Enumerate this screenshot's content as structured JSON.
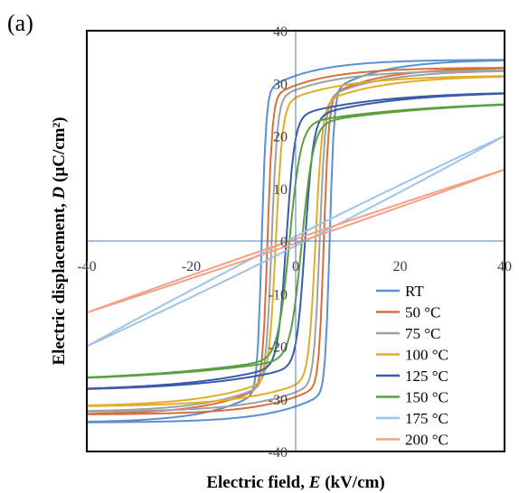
{
  "panel_label": "(a)",
  "chart_data": {
    "type": "line",
    "title": "",
    "xlabel": {
      "pre": "Electric field, ",
      "var": "E",
      "post": " (kV/cm)"
    },
    "ylabel": {
      "pre": "Electric displacement, ",
      "var": "D",
      "post": " (μC/cm²)"
    },
    "xlim": [
      -40,
      40
    ],
    "ylim": [
      -40,
      40
    ],
    "x_ticks": [
      -40,
      -20,
      0,
      20,
      40
    ],
    "y_ticks": [
      -40,
      -30,
      -20,
      -10,
      0,
      10,
      20,
      30,
      40
    ],
    "grid": false,
    "legend_position": "bottom-right",
    "series": [
      {
        "name": "RT",
        "color": "#5b8fcf",
        "Ps": 34.5,
        "Ec": 6.5,
        "w": 0.85,
        "sat": 2.3,
        "lin": 0,
        "hys": 0
      },
      {
        "name": "50 °C",
        "color": "#d4703b",
        "Ps": 33.0,
        "Ec": 5.4,
        "w": 0.95,
        "sat": 2.4,
        "lin": 0,
        "hys": 0
      },
      {
        "name": "75 °C",
        "color": "#a0a0a0",
        "Ps": 32.5,
        "Ec": 4.6,
        "w": 1.1,
        "sat": 2.6,
        "lin": 0,
        "hys": 0
      },
      {
        "name": "100 °C",
        "color": "#e0ac2a",
        "Ps": 31.5,
        "Ec": 3.8,
        "w": 1.3,
        "sat": 2.9,
        "lin": 0,
        "hys": 0
      },
      {
        "name": "125 °C",
        "color": "#3d5aa8",
        "Ps": 28.5,
        "Ec": 1.8,
        "w": 1.6,
        "sat": 4.0,
        "lin": 0,
        "hys": 0
      },
      {
        "name": "150 °C",
        "color": "#5aa043",
        "Ps": 27.0,
        "Ec": 1.2,
        "w": 2.2,
        "sat": 6.5,
        "lin": 0,
        "hys": 0
      },
      {
        "name": "175 °C",
        "color": "#9ec3e6",
        "Ps": 0,
        "Ec": 0,
        "w": 1,
        "sat": 1,
        "lin": 0.5,
        "hys": 0.9
      },
      {
        "name": "200 °C",
        "color": "#f2a089",
        "Ps": 0,
        "Ec": 0,
        "w": 1,
        "sat": 1,
        "lin": 0.34,
        "hys": 0.4
      }
    ]
  }
}
